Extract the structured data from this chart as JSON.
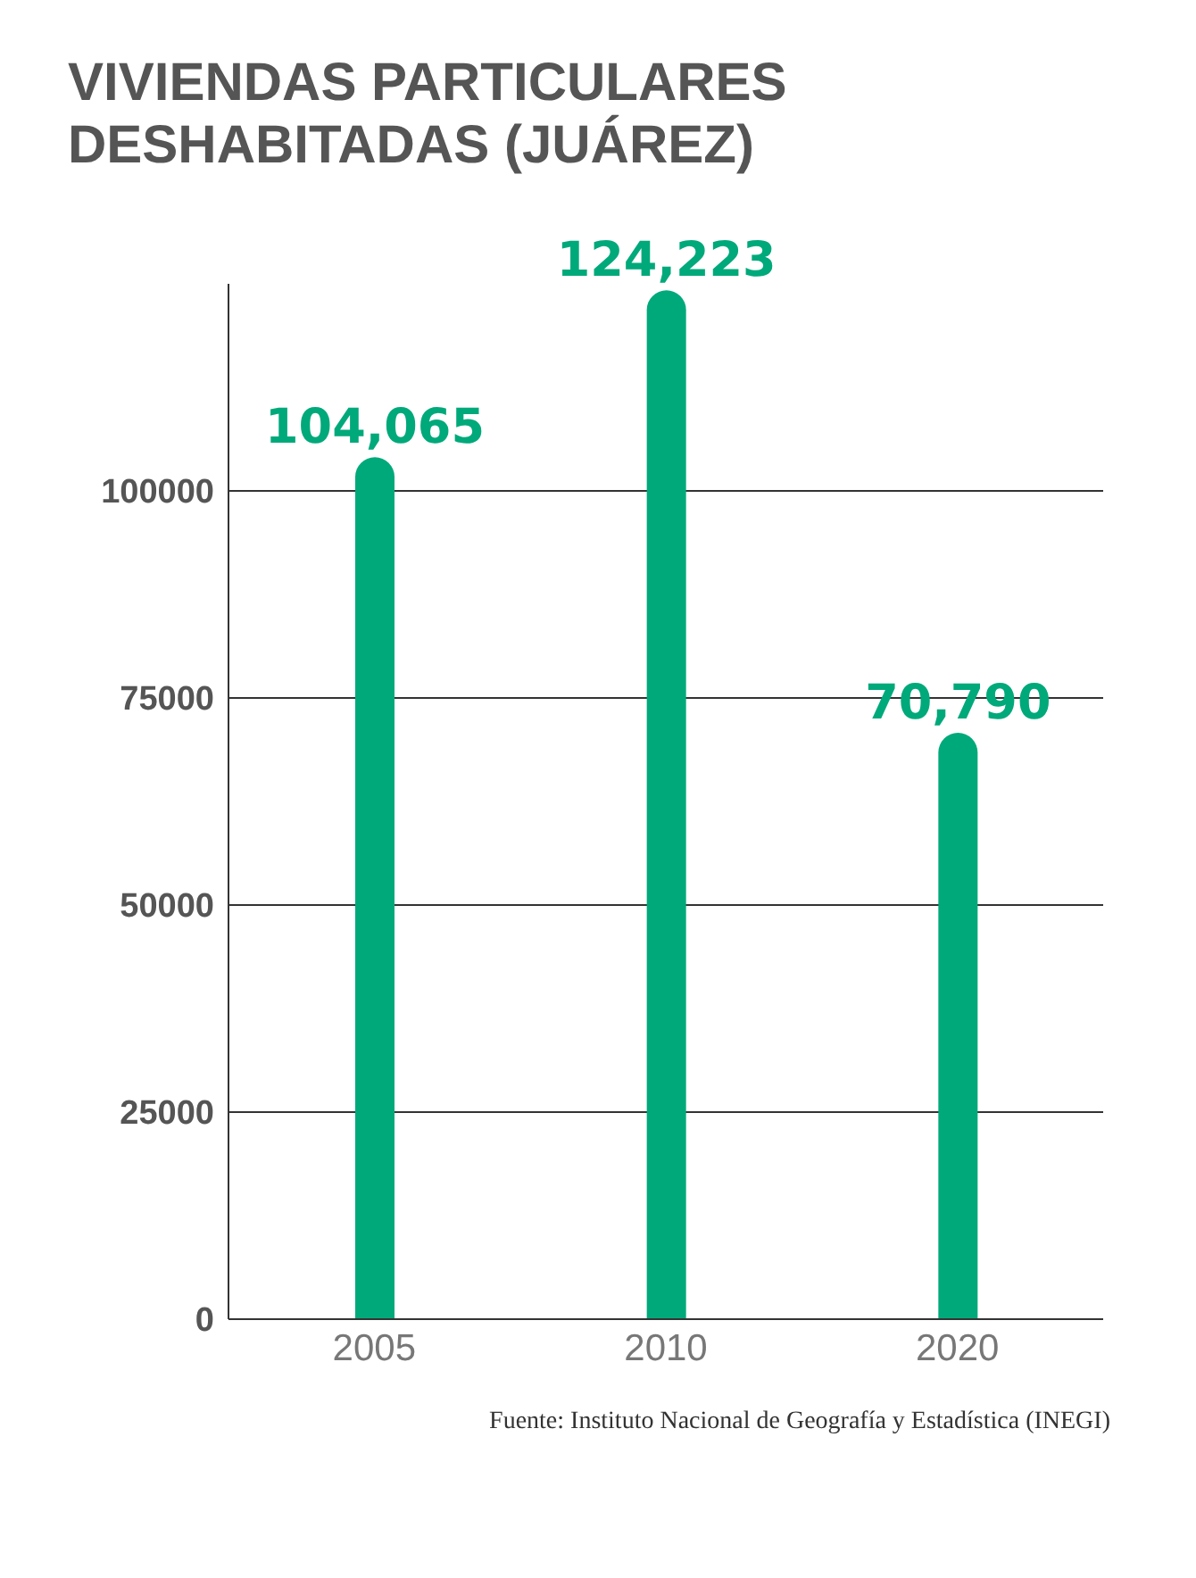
{
  "chart_data": {
    "type": "bar",
    "title": "VIVIENDAS PARTICULARES DESHABITADAS (JUÁREZ)",
    "categories": [
      "2005",
      "2010",
      "2020"
    ],
    "values": [
      104065,
      124223,
      70790
    ],
    "value_labels": [
      "104,065",
      "124,223",
      "70,790"
    ],
    "color": "#00a97a",
    "ylim": [
      0,
      125000
    ],
    "yticks": [
      0,
      25000,
      50000,
      75000,
      100000
    ],
    "grid": "y",
    "annotations": [
      "Fuente: Instituto Nacional de Geografía y Estadística (INEGI)"
    ]
  }
}
